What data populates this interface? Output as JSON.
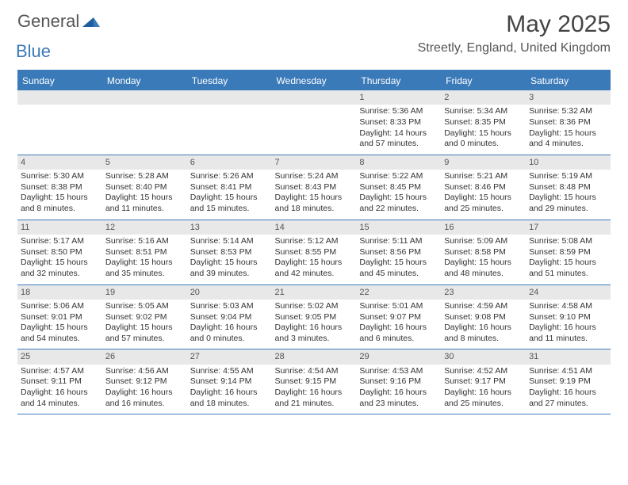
{
  "logo": {
    "word1": "General",
    "word2": "Blue"
  },
  "title": "May 2025",
  "location": "Streetly, England, United Kingdom",
  "colors": {
    "header_bg": "#3a7ab8",
    "strip_bg": "#e8e8e8",
    "page_bg": "#ffffff",
    "text": "#333333",
    "logo_blue": "#3a7ab8",
    "logo_gray": "#555555"
  },
  "dow": [
    "Sunday",
    "Monday",
    "Tuesday",
    "Wednesday",
    "Thursday",
    "Friday",
    "Saturday"
  ],
  "weeks": [
    [
      {
        "n": "",
        "sr": "",
        "ss": "",
        "dl": ""
      },
      {
        "n": "",
        "sr": "",
        "ss": "",
        "dl": ""
      },
      {
        "n": "",
        "sr": "",
        "ss": "",
        "dl": ""
      },
      {
        "n": "",
        "sr": "",
        "ss": "",
        "dl": ""
      },
      {
        "n": "1",
        "sr": "Sunrise: 5:36 AM",
        "ss": "Sunset: 8:33 PM",
        "dl": "Daylight: 14 hours and 57 minutes."
      },
      {
        "n": "2",
        "sr": "Sunrise: 5:34 AM",
        "ss": "Sunset: 8:35 PM",
        "dl": "Daylight: 15 hours and 0 minutes."
      },
      {
        "n": "3",
        "sr": "Sunrise: 5:32 AM",
        "ss": "Sunset: 8:36 PM",
        "dl": "Daylight: 15 hours and 4 minutes."
      }
    ],
    [
      {
        "n": "4",
        "sr": "Sunrise: 5:30 AM",
        "ss": "Sunset: 8:38 PM",
        "dl": "Daylight: 15 hours and 8 minutes."
      },
      {
        "n": "5",
        "sr": "Sunrise: 5:28 AM",
        "ss": "Sunset: 8:40 PM",
        "dl": "Daylight: 15 hours and 11 minutes."
      },
      {
        "n": "6",
        "sr": "Sunrise: 5:26 AM",
        "ss": "Sunset: 8:41 PM",
        "dl": "Daylight: 15 hours and 15 minutes."
      },
      {
        "n": "7",
        "sr": "Sunrise: 5:24 AM",
        "ss": "Sunset: 8:43 PM",
        "dl": "Daylight: 15 hours and 18 minutes."
      },
      {
        "n": "8",
        "sr": "Sunrise: 5:22 AM",
        "ss": "Sunset: 8:45 PM",
        "dl": "Daylight: 15 hours and 22 minutes."
      },
      {
        "n": "9",
        "sr": "Sunrise: 5:21 AM",
        "ss": "Sunset: 8:46 PM",
        "dl": "Daylight: 15 hours and 25 minutes."
      },
      {
        "n": "10",
        "sr": "Sunrise: 5:19 AM",
        "ss": "Sunset: 8:48 PM",
        "dl": "Daylight: 15 hours and 29 minutes."
      }
    ],
    [
      {
        "n": "11",
        "sr": "Sunrise: 5:17 AM",
        "ss": "Sunset: 8:50 PM",
        "dl": "Daylight: 15 hours and 32 minutes."
      },
      {
        "n": "12",
        "sr": "Sunrise: 5:16 AM",
        "ss": "Sunset: 8:51 PM",
        "dl": "Daylight: 15 hours and 35 minutes."
      },
      {
        "n": "13",
        "sr": "Sunrise: 5:14 AM",
        "ss": "Sunset: 8:53 PM",
        "dl": "Daylight: 15 hours and 39 minutes."
      },
      {
        "n": "14",
        "sr": "Sunrise: 5:12 AM",
        "ss": "Sunset: 8:55 PM",
        "dl": "Daylight: 15 hours and 42 minutes."
      },
      {
        "n": "15",
        "sr": "Sunrise: 5:11 AM",
        "ss": "Sunset: 8:56 PM",
        "dl": "Daylight: 15 hours and 45 minutes."
      },
      {
        "n": "16",
        "sr": "Sunrise: 5:09 AM",
        "ss": "Sunset: 8:58 PM",
        "dl": "Daylight: 15 hours and 48 minutes."
      },
      {
        "n": "17",
        "sr": "Sunrise: 5:08 AM",
        "ss": "Sunset: 8:59 PM",
        "dl": "Daylight: 15 hours and 51 minutes."
      }
    ],
    [
      {
        "n": "18",
        "sr": "Sunrise: 5:06 AM",
        "ss": "Sunset: 9:01 PM",
        "dl": "Daylight: 15 hours and 54 minutes."
      },
      {
        "n": "19",
        "sr": "Sunrise: 5:05 AM",
        "ss": "Sunset: 9:02 PM",
        "dl": "Daylight: 15 hours and 57 minutes."
      },
      {
        "n": "20",
        "sr": "Sunrise: 5:03 AM",
        "ss": "Sunset: 9:04 PM",
        "dl": "Daylight: 16 hours and 0 minutes."
      },
      {
        "n": "21",
        "sr": "Sunrise: 5:02 AM",
        "ss": "Sunset: 9:05 PM",
        "dl": "Daylight: 16 hours and 3 minutes."
      },
      {
        "n": "22",
        "sr": "Sunrise: 5:01 AM",
        "ss": "Sunset: 9:07 PM",
        "dl": "Daylight: 16 hours and 6 minutes."
      },
      {
        "n": "23",
        "sr": "Sunrise: 4:59 AM",
        "ss": "Sunset: 9:08 PM",
        "dl": "Daylight: 16 hours and 8 minutes."
      },
      {
        "n": "24",
        "sr": "Sunrise: 4:58 AM",
        "ss": "Sunset: 9:10 PM",
        "dl": "Daylight: 16 hours and 11 minutes."
      }
    ],
    [
      {
        "n": "25",
        "sr": "Sunrise: 4:57 AM",
        "ss": "Sunset: 9:11 PM",
        "dl": "Daylight: 16 hours and 14 minutes."
      },
      {
        "n": "26",
        "sr": "Sunrise: 4:56 AM",
        "ss": "Sunset: 9:12 PM",
        "dl": "Daylight: 16 hours and 16 minutes."
      },
      {
        "n": "27",
        "sr": "Sunrise: 4:55 AM",
        "ss": "Sunset: 9:14 PM",
        "dl": "Daylight: 16 hours and 18 minutes."
      },
      {
        "n": "28",
        "sr": "Sunrise: 4:54 AM",
        "ss": "Sunset: 9:15 PM",
        "dl": "Daylight: 16 hours and 21 minutes."
      },
      {
        "n": "29",
        "sr": "Sunrise: 4:53 AM",
        "ss": "Sunset: 9:16 PM",
        "dl": "Daylight: 16 hours and 23 minutes."
      },
      {
        "n": "30",
        "sr": "Sunrise: 4:52 AM",
        "ss": "Sunset: 9:17 PM",
        "dl": "Daylight: 16 hours and 25 minutes."
      },
      {
        "n": "31",
        "sr": "Sunrise: 4:51 AM",
        "ss": "Sunset: 9:19 PM",
        "dl": "Daylight: 16 hours and 27 minutes."
      }
    ]
  ]
}
